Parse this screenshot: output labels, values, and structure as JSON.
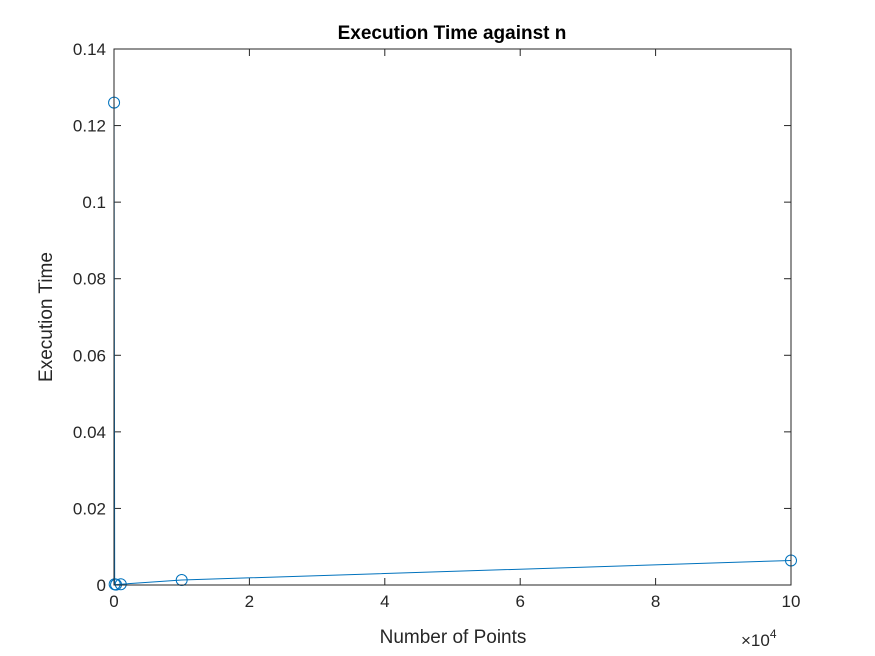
{
  "chart_data": {
    "type": "line",
    "title": "Execution Time against n",
    "xlabel": "Number of Points",
    "ylabel": "Execution Time",
    "x_exponent_label": "×10",
    "x_exponent_power": "4",
    "xlim": [
      0,
      100000
    ],
    "ylim": [
      0,
      0.14
    ],
    "x_ticks": [
      0,
      20000,
      40000,
      60000,
      80000,
      100000
    ],
    "x_tick_labels": [
      "0",
      "2",
      "4",
      "6",
      "8",
      "10"
    ],
    "y_ticks": [
      0,
      0.02,
      0.04,
      0.06,
      0.08,
      0.1,
      0.12,
      0.14
    ],
    "y_tick_labels": [
      "0",
      "0.02",
      "0.04",
      "0.06",
      "0.08",
      "0.1",
      "0.12",
      "0.14"
    ],
    "grid": false,
    "marker": "circle",
    "color": "#0072BD",
    "series": [
      {
        "x": [
          10,
          100,
          300,
          1000,
          10000,
          100000
        ],
        "y": [
          0.126,
          0.0002,
          0.0001,
          0.0002,
          0.0013,
          0.0064
        ]
      }
    ]
  }
}
